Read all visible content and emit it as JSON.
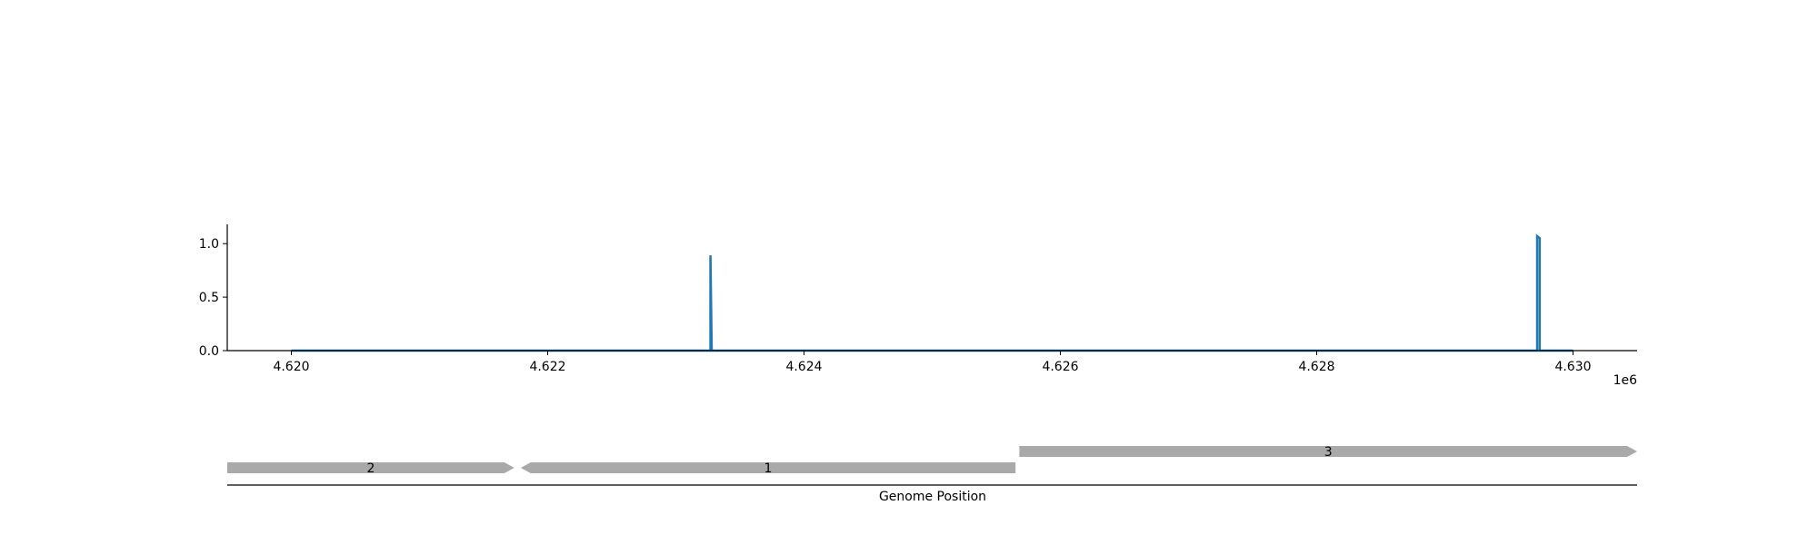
{
  "colors": {
    "series": "#1f77b4",
    "gene": "#a9a9a9",
    "axis": "#000000",
    "background": "#ffffff"
  },
  "chart_data": [
    {
      "type": "line",
      "title": "",
      "xlabel": "",
      "ylabel": "",
      "x_offset_label": "1e6",
      "xlim": [
        4.6195,
        4.6305
      ],
      "ylim": [
        0.0,
        1.18
      ],
      "x_ticks": [
        4.62,
        4.622,
        4.624,
        4.626,
        4.628,
        4.63
      ],
      "x_tick_labels": [
        "4.620",
        "4.622",
        "4.624",
        "4.626",
        "4.628",
        "4.630"
      ],
      "y_ticks": [
        0.0,
        0.5,
        1.0
      ],
      "y_tick_labels": [
        "0.0",
        "0.5",
        "1.0"
      ],
      "grid": false,
      "series": [
        {
          "points": [
            [
              4.62,
              0.0
            ],
            [
              4.62327,
              0.0
            ],
            [
              4.62327,
              0.89
            ],
            [
              4.62328,
              0.0
            ],
            [
              4.62972,
              0.0
            ],
            [
              4.62972,
              1.07
            ],
            [
              4.62974,
              1.05
            ],
            [
              4.62974,
              0.0
            ],
            [
              4.63,
              0.0
            ]
          ]
        }
      ]
    },
    {
      "type": "gene-map",
      "xlabel": "Genome Position",
      "genes": [
        {
          "label": "2",
          "start": 4.6195,
          "end": 4.62174,
          "strand": "+",
          "track": 0
        },
        {
          "label": "1",
          "start": 4.62179,
          "end": 4.62565,
          "strand": "-",
          "track": 0
        },
        {
          "label": "3",
          "start": 4.62568,
          "end": 4.6305,
          "strand": "+",
          "track": 1
        }
      ]
    }
  ]
}
